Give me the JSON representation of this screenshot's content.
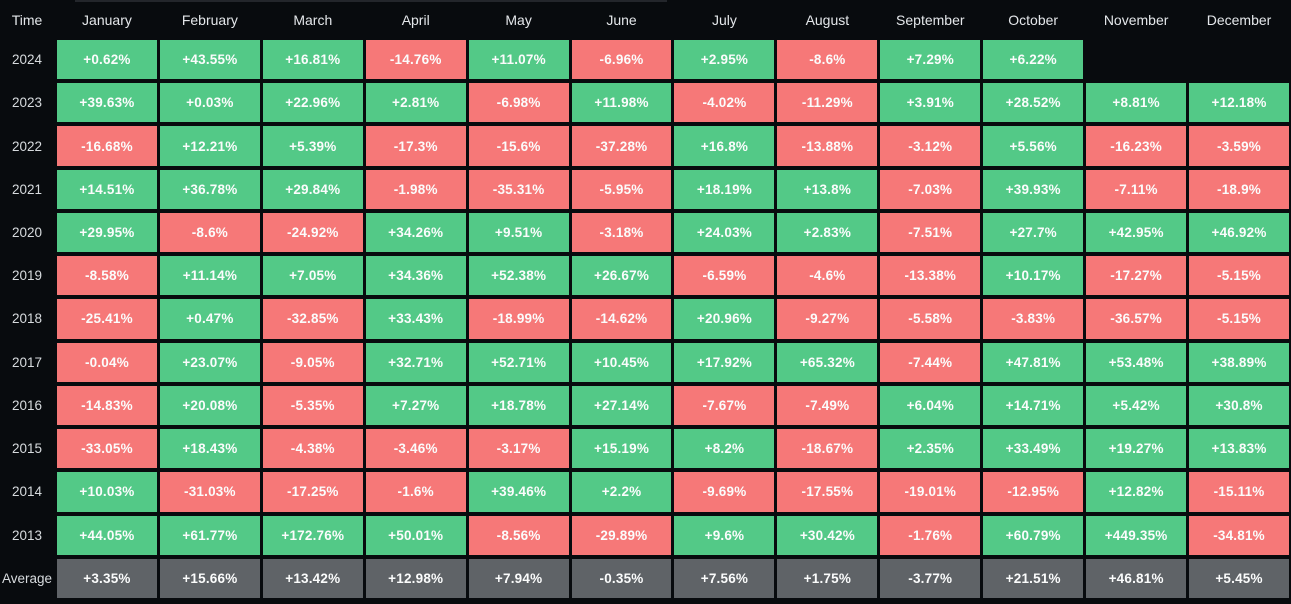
{
  "header": {
    "corner_label": "Time",
    "months": [
      "January",
      "February",
      "March",
      "April",
      "May",
      "June",
      "July",
      "August",
      "September",
      "October",
      "November",
      "December"
    ]
  },
  "rows": [
    {
      "label": "2024",
      "kind": "year",
      "values": [
        "+0.62%",
        "+43.55%",
        "+16.81%",
        "-14.76%",
        "+11.07%",
        "-6.96%",
        "+2.95%",
        "-8.6%",
        "+7.29%",
        "+6.22%",
        "",
        ""
      ]
    },
    {
      "label": "2023",
      "kind": "year",
      "values": [
        "+39.63%",
        "+0.03%",
        "+22.96%",
        "+2.81%",
        "-6.98%",
        "+11.98%",
        "-4.02%",
        "-11.29%",
        "+3.91%",
        "+28.52%",
        "+8.81%",
        "+12.18%"
      ]
    },
    {
      "label": "2022",
      "kind": "year",
      "values": [
        "-16.68%",
        "+12.21%",
        "+5.39%",
        "-17.3%",
        "-15.6%",
        "-37.28%",
        "+16.8%",
        "-13.88%",
        "-3.12%",
        "+5.56%",
        "-16.23%",
        "-3.59%"
      ]
    },
    {
      "label": "2021",
      "kind": "year",
      "values": [
        "+14.51%",
        "+36.78%",
        "+29.84%",
        "-1.98%",
        "-35.31%",
        "-5.95%",
        "+18.19%",
        "+13.8%",
        "-7.03%",
        "+39.93%",
        "-7.11%",
        "-18.9%"
      ]
    },
    {
      "label": "2020",
      "kind": "year",
      "values": [
        "+29.95%",
        "-8.6%",
        "-24.92%",
        "+34.26%",
        "+9.51%",
        "-3.18%",
        "+24.03%",
        "+2.83%",
        "-7.51%",
        "+27.7%",
        "+42.95%",
        "+46.92%"
      ]
    },
    {
      "label": "2019",
      "kind": "year",
      "values": [
        "-8.58%",
        "+11.14%",
        "+7.05%",
        "+34.36%",
        "+52.38%",
        "+26.67%",
        "-6.59%",
        "-4.6%",
        "-13.38%",
        "+10.17%",
        "-17.27%",
        "-5.15%"
      ]
    },
    {
      "label": "2018",
      "kind": "year",
      "values": [
        "-25.41%",
        "+0.47%",
        "-32.85%",
        "+33.43%",
        "-18.99%",
        "-14.62%",
        "+20.96%",
        "-9.27%",
        "-5.58%",
        "-3.83%",
        "-36.57%",
        "-5.15%"
      ]
    },
    {
      "label": "2017",
      "kind": "year",
      "values": [
        "-0.04%",
        "+23.07%",
        "-9.05%",
        "+32.71%",
        "+52.71%",
        "+10.45%",
        "+17.92%",
        "+65.32%",
        "-7.44%",
        "+47.81%",
        "+53.48%",
        "+38.89%"
      ]
    },
    {
      "label": "2016",
      "kind": "year",
      "values": [
        "-14.83%",
        "+20.08%",
        "-5.35%",
        "+7.27%",
        "+18.78%",
        "+27.14%",
        "-7.67%",
        "-7.49%",
        "+6.04%",
        "+14.71%",
        "+5.42%",
        "+30.8%"
      ]
    },
    {
      "label": "2015",
      "kind": "year",
      "values": [
        "-33.05%",
        "+18.43%",
        "-4.38%",
        "-3.46%",
        "-3.17%",
        "+15.19%",
        "+8.2%",
        "-18.67%",
        "+2.35%",
        "+33.49%",
        "+19.27%",
        "+13.83%"
      ]
    },
    {
      "label": "2014",
      "kind": "year",
      "values": [
        "+10.03%",
        "-31.03%",
        "-17.25%",
        "-1.6%",
        "+39.46%",
        "+2.2%",
        "-9.69%",
        "-17.55%",
        "-19.01%",
        "-12.95%",
        "+12.82%",
        "-15.11%"
      ]
    },
    {
      "label": "2013",
      "kind": "year",
      "values": [
        "+44.05%",
        "+61.77%",
        "+172.76%",
        "+50.01%",
        "-8.56%",
        "-29.89%",
        "+9.6%",
        "+30.42%",
        "-1.76%",
        "+60.79%",
        "+449.35%",
        "-34.81%"
      ]
    },
    {
      "label": "Average",
      "kind": "average",
      "values": [
        "+3.35%",
        "+15.66%",
        "+13.42%",
        "+12.98%",
        "+7.94%",
        "-0.35%",
        "+7.56%",
        "+1.75%",
        "-3.77%",
        "+21.51%",
        "+46.81%",
        "+5.45%"
      ]
    }
  ],
  "colors": {
    "background": "#080b0e",
    "positive": "#53c987",
    "negative": "#f67878",
    "average": "#5f6367",
    "header_text": "#e4e7ea",
    "label_text": "#d7dbde",
    "cell_text": "#fbfcfc"
  },
  "chart_data": {
    "type": "heatmap",
    "title": "",
    "x_categories": [
      "January",
      "February",
      "March",
      "April",
      "May",
      "June",
      "July",
      "August",
      "September",
      "October",
      "November",
      "December"
    ],
    "y_categories": [
      "2024",
      "2023",
      "2022",
      "2021",
      "2020",
      "2019",
      "2018",
      "2017",
      "2016",
      "2015",
      "2014",
      "2013",
      "Average"
    ],
    "unit": "%",
    "color_rule": "green = positive monthly return, red = negative monthly return, gray = average row, blank = no data",
    "values": [
      [
        0.62,
        43.55,
        16.81,
        -14.76,
        11.07,
        -6.96,
        2.95,
        -8.6,
        7.29,
        6.22,
        null,
        null
      ],
      [
        39.63,
        0.03,
        22.96,
        2.81,
        -6.98,
        11.98,
        -4.02,
        -11.29,
        3.91,
        28.52,
        8.81,
        12.18
      ],
      [
        -16.68,
        12.21,
        5.39,
        -17.3,
        -15.6,
        -37.28,
        16.8,
        -13.88,
        -3.12,
        5.56,
        -16.23,
        -3.59
      ],
      [
        14.51,
        36.78,
        29.84,
        -1.98,
        -35.31,
        -5.95,
        18.19,
        13.8,
        -7.03,
        39.93,
        -7.11,
        -18.9
      ],
      [
        29.95,
        -8.6,
        -24.92,
        34.26,
        9.51,
        -3.18,
        24.03,
        2.83,
        -7.51,
        27.7,
        42.95,
        46.92
      ],
      [
        -8.58,
        11.14,
        7.05,
        34.36,
        52.38,
        26.67,
        -6.59,
        -4.6,
        -13.38,
        10.17,
        -17.27,
        -5.15
      ],
      [
        -25.41,
        0.47,
        -32.85,
        33.43,
        -18.99,
        -14.62,
        20.96,
        -9.27,
        -5.58,
        -3.83,
        -36.57,
        -5.15
      ],
      [
        -0.04,
        23.07,
        -9.05,
        32.71,
        52.71,
        10.45,
        17.92,
        65.32,
        -7.44,
        47.81,
        53.48,
        38.89
      ],
      [
        -14.83,
        20.08,
        -5.35,
        7.27,
        18.78,
        27.14,
        -7.67,
        -7.49,
        6.04,
        14.71,
        5.42,
        30.8
      ],
      [
        -33.05,
        18.43,
        -4.38,
        -3.46,
        -3.17,
        15.19,
        8.2,
        -18.67,
        2.35,
        33.49,
        19.27,
        13.83
      ],
      [
        10.03,
        -31.03,
        -17.25,
        -1.6,
        39.46,
        2.2,
        -9.69,
        -17.55,
        -19.01,
        -12.95,
        12.82,
        -15.11
      ],
      [
        44.05,
        61.77,
        172.76,
        50.01,
        -8.56,
        -29.89,
        9.6,
        30.42,
        -1.76,
        60.79,
        449.35,
        -34.81
      ],
      [
        3.35,
        15.66,
        13.42,
        12.98,
        7.94,
        -0.35,
        7.56,
        1.75,
        -3.77,
        21.51,
        46.81,
        5.45
      ]
    ]
  }
}
